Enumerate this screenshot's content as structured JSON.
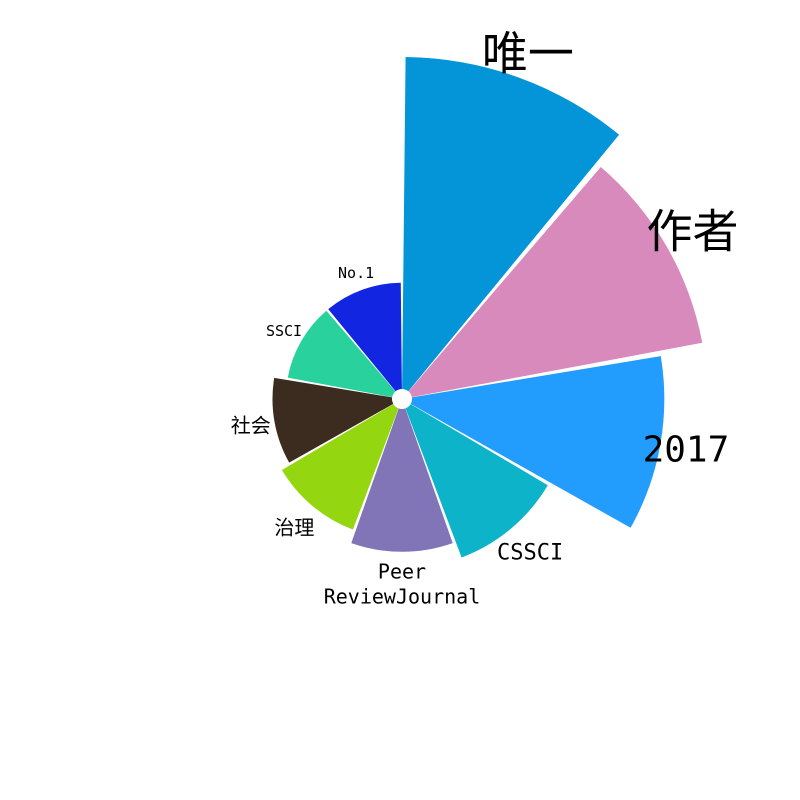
{
  "chart_data": {
    "type": "bar",
    "polar": true,
    "title": "",
    "categories": [
      "唯一",
      "作者",
      "2017",
      "CSSCI",
      "Peer ReviewJournal",
      "治理",
      "社会",
      "SSCI",
      "No.1"
    ],
    "label_lines": [
      [
        "唯一"
      ],
      [
        "作者"
      ],
      [
        "2017"
      ],
      [
        "CSSCI"
      ],
      [
        "Peer",
        "ReviewJournal"
      ],
      [
        "治理"
      ],
      [
        "社会"
      ],
      [
        "SSCI"
      ],
      [
        "No.1"
      ]
    ],
    "values": [
      100,
      89,
      76,
      48,
      43,
      39,
      36,
      32,
      32
    ],
    "colors": [
      "#0494d8",
      "#d78abb",
      "#229cfd",
      "#0db4c9",
      "#8175b8",
      "#94d610",
      "#3c2c20",
      "#29d29c",
      "#1225e1",
      "#117ad9"
    ],
    "radial_range": [
      0,
      100
    ],
    "grid": false,
    "legend": "none"
  }
}
